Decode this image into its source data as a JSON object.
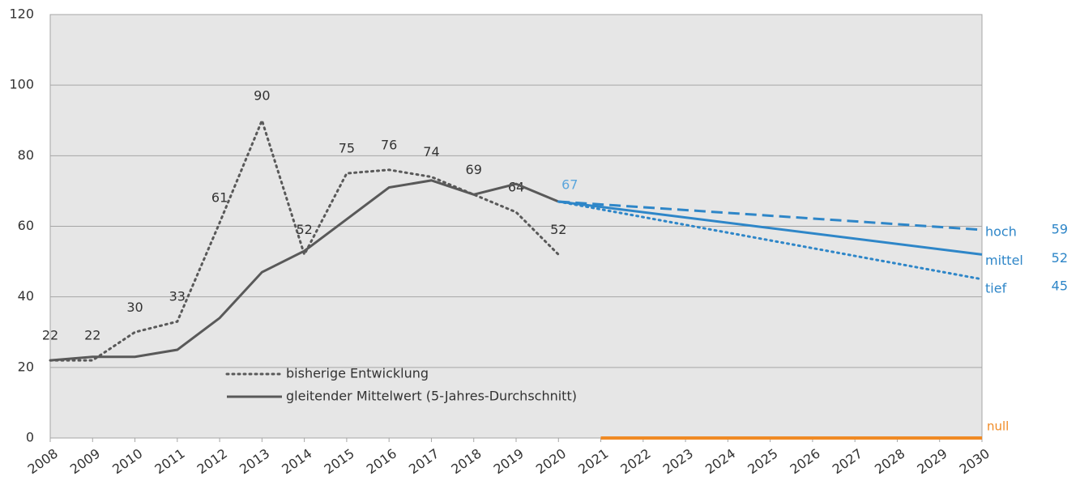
{
  "chart_data": {
    "type": "line",
    "xlim": [
      2008,
      2030
    ],
    "xticks": [
      2008,
      2009,
      2010,
      2011,
      2012,
      2013,
      2014,
      2015,
      2016,
      2017,
      2018,
      2019,
      2020,
      2021,
      2022,
      2023,
      2024,
      2025,
      2026,
      2027,
      2028,
      2029,
      2030
    ],
    "ylim": [
      0,
      120
    ],
    "yticks": [
      0,
      20,
      40,
      60,
      80,
      100,
      120
    ],
    "grid": true,
    "series": [
      {
        "name": "bisherige Entwicklung",
        "color": "#595959",
        "dash": "dotted",
        "legend": true,
        "data_labels": true,
        "x": [
          2008,
          2009,
          2010,
          2011,
          2012,
          2013,
          2014,
          2015,
          2016,
          2017,
          2018,
          2019,
          2020
        ],
        "values": [
          22,
          22,
          30,
          33,
          61,
          90,
          52,
          75,
          76,
          74,
          69,
          64,
          52
        ]
      },
      {
        "name": "gleitender Mittelwert (5-Jahres-Durchschnitt)",
        "color": "#595959",
        "dash": "solid",
        "legend": true,
        "x": [
          2008,
          2009,
          2010,
          2011,
          2012,
          2013,
          2014,
          2015,
          2016,
          2017,
          2018,
          2019,
          2020
        ],
        "values": [
          22,
          23,
          23,
          25,
          34,
          47,
          53,
          62,
          71,
          73,
          69,
          72,
          67
        ]
      },
      {
        "name": "hoch",
        "color": "#2e86c8",
        "dash": "dashed",
        "end_label": true,
        "x": [
          2020,
          2030
        ],
        "values": [
          67,
          59
        ]
      },
      {
        "name": "mittel",
        "color": "#2e86c8",
        "dash": "solid",
        "end_label": true,
        "start_label": true,
        "x": [
          2020,
          2030
        ],
        "values": [
          67,
          52
        ]
      },
      {
        "name": "tief",
        "color": "#2e86c8",
        "dash": "dotted",
        "end_label": true,
        "x": [
          2020,
          2030
        ],
        "values": [
          67,
          45
        ]
      },
      {
        "name": "null",
        "color": "#f08a24",
        "dash": "solid",
        "name_label": true,
        "x": [
          2021,
          2030
        ],
        "values": [
          0,
          0
        ]
      }
    ]
  }
}
